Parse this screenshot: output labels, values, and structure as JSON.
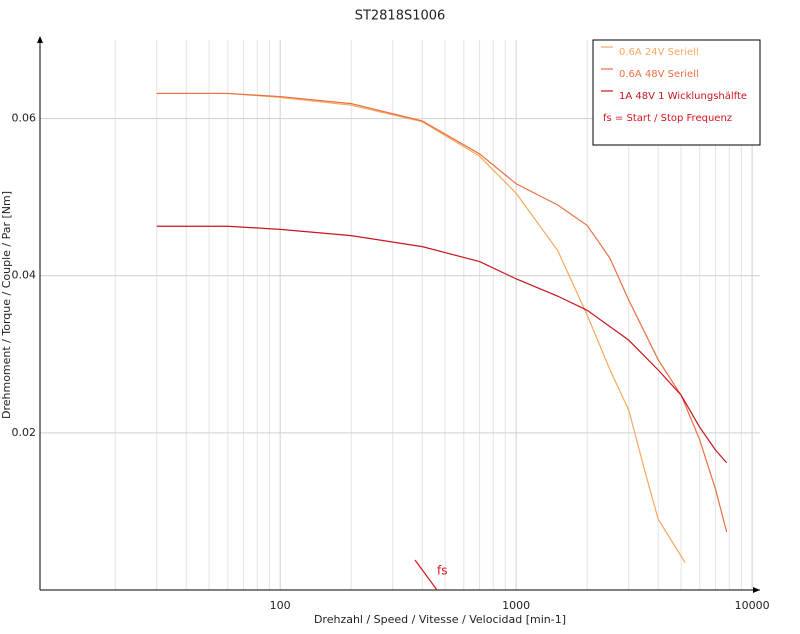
{
  "chart_data": {
    "type": "line",
    "title": "ST2818S1006",
    "xlabel": "Drehzahl / Speed / Vitesse / Velocidad [min-1]",
    "ylabel": "Drehmoment / Torque / Couple / Par [Nm]",
    "xscale": "log",
    "xlim": [
      9.6,
      10800
    ],
    "ylim": [
      0,
      0.07
    ],
    "xticks": [
      100,
      1000,
      10000
    ],
    "yticks": [
      0.02,
      0.04,
      0.06
    ],
    "grid": true,
    "legend": "upper right",
    "legend_note": "fs = Start / Stop Frequenz",
    "legend_note_color": "#d4141c",
    "annotation": "fs",
    "annotation_color": "#d4141c",
    "series": [
      {
        "name": "0.6A  24V  Seriell",
        "color": "#f6a860",
        "x": [
          30,
          60,
          100,
          200,
          400,
          700,
          1000,
          1500,
          2000,
          2500,
          3000,
          3500,
          4000,
          5200
        ],
        "values": [
          0.0632,
          0.0632,
          0.0627,
          0.0617,
          0.0596,
          0.0552,
          0.0505,
          0.0432,
          0.035,
          0.028,
          0.0229,
          0.0153,
          0.009,
          0.0035
        ]
      },
      {
        "name": "0.6A  48V  Seriell",
        "color": "#ea6f42",
        "x": [
          30,
          60,
          100,
          200,
          400,
          700,
          1000,
          1500,
          2000,
          2500,
          3000,
          4000,
          5000,
          6000,
          7000,
          7800
        ],
        "values": [
          0.0632,
          0.0632,
          0.0628,
          0.0619,
          0.0597,
          0.0555,
          0.0517,
          0.049,
          0.0464,
          0.0422,
          0.0369,
          0.0293,
          0.0248,
          0.0191,
          0.0128,
          0.0074
        ]
      },
      {
        "name": "1A  48V  1 Wicklungshälfte",
        "color": "#c8151e",
        "x": [
          30,
          60,
          100,
          200,
          400,
          700,
          1000,
          1500,
          2000,
          3000,
          4000,
          5000,
          6000,
          7000,
          7800
        ],
        "values": [
          0.0463,
          0.0463,
          0.0459,
          0.0451,
          0.0437,
          0.0418,
          0.0396,
          0.0374,
          0.0356,
          0.0318,
          0.028,
          0.0248,
          0.0207,
          0.0178,
          0.0162
        ]
      }
    ]
  }
}
